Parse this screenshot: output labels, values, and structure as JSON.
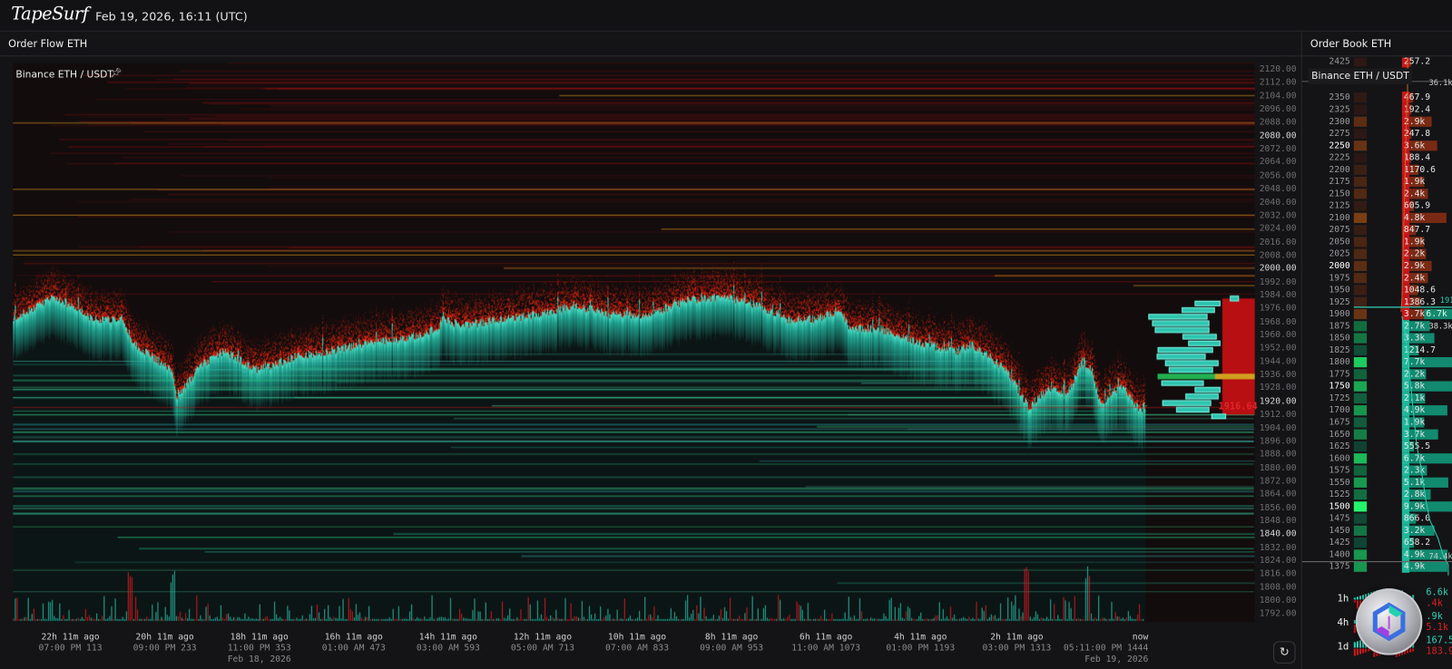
{
  "header": {
    "logo": "TapeSurf",
    "datetime": "Feb 19, 2026, 16:11 (UTC)"
  },
  "order_flow": {
    "panel_title": "Order Flow ETH",
    "instrument": "Binance ETH / USDT",
    "pin_icon": "pin-icon",
    "price_axis": {
      "max": 2120,
      "min": 1792,
      "step": 8,
      "bold": [
        2080,
        2000,
        1920,
        1840
      ]
    },
    "last_price": "1916.64",
    "colors": {
      "bid": "#2fd0b4",
      "ask": "#d01818",
      "level_line": "#d08a1a"
    },
    "price_trace": {
      "hours_ago": [
        23.4,
        22.5,
        21.7,
        21.1,
        20.9,
        20.1,
        20.0,
        19.5,
        19.0,
        18.3,
        17.5,
        16.7,
        16.0,
        15.2,
        14.6,
        14.5,
        14.1,
        13.3,
        12.5,
        11.8,
        11.0,
        10.2,
        9.5,
        8.7,
        8.0,
        7.4,
        6.8,
        6.3,
        6.1,
        5.5,
        4.7,
        4.3,
        3.9,
        3.6,
        3.2,
        2.8,
        2.4,
        2.0,
        1.6,
        1.3,
        1.1,
        0.9,
        0.5,
        0.1,
        0
      ],
      "price": [
        1969.5,
        1983.4,
        1969.5,
        1969.5,
        1955.6,
        1938.8,
        1922.0,
        1941.6,
        1950.0,
        1938.8,
        1947.2,
        1951.0,
        1955.6,
        1958.4,
        1964.0,
        1969.5,
        1965.6,
        1969.5,
        1972.3,
        1977.9,
        1972.3,
        1972.3,
        1980.6,
        1983.4,
        1977.9,
        1969.5,
        1969.5,
        1975.1,
        1964.0,
        1964.0,
        1955.6,
        1952.8,
        1950.0,
        1954.4,
        1947.2,
        1936.0,
        1916.5,
        1927.7,
        1924.9,
        1944.4,
        1938.8,
        1916.5,
        1930.5,
        1913.8,
        1917.7
      ]
    },
    "time_axis": [
      {
        "ago": "22h 11m ago",
        "time": "07:00 PM 113",
        "date": ""
      },
      {
        "ago": "20h 11m ago",
        "time": "09:00 PM 233",
        "date": ""
      },
      {
        "ago": "18h 11m ago",
        "time": "11:00 PM 353",
        "date": "Feb 18, 2026"
      },
      {
        "ago": "16h 11m ago",
        "time": "01:00 AM 473",
        "date": ""
      },
      {
        "ago": "14h 11m ago",
        "time": "03:00 AM 593",
        "date": ""
      },
      {
        "ago": "12h 11m ago",
        "time": "05:00 AM 713",
        "date": ""
      },
      {
        "ago": "10h 11m ago",
        "time": "07:00 AM 833",
        "date": ""
      },
      {
        "ago": "8h 11m ago",
        "time": "09:00 AM 953",
        "date": ""
      },
      {
        "ago": "6h 11m ago",
        "time": "11:00 AM 1073",
        "date": ""
      },
      {
        "ago": "4h 11m ago",
        "time": "01:00 PM 1193",
        "date": ""
      },
      {
        "ago": "2h 11m ago",
        "time": "03:00 PM 1313",
        "date": ""
      },
      {
        "ago": "now",
        "time": "05:11:00 PM 1444",
        "date": "Feb 19, 2026"
      }
    ],
    "refresh_icon": "refresh-icon"
  },
  "order_book": {
    "panel_title": "Order Book ETH",
    "instrument": "Binance ETH / USDT",
    "rows": [
      {
        "price": "2425",
        "value": "257.2",
        "side": "ask"
      },
      {
        "price": "",
        "value": "",
        "side": "ask"
      },
      {
        "price": "",
        "value": "",
        "side": "ask"
      },
      {
        "price": "2350",
        "value": "467.9",
        "side": "ask"
      },
      {
        "price": "2325",
        "value": "192.4",
        "side": "ask"
      },
      {
        "price": "2300",
        "value": "2.9k",
        "side": "ask"
      },
      {
        "price": "2275",
        "value": "247.8",
        "side": "ask"
      },
      {
        "price": "2250",
        "value": "3.6k",
        "side": "ask",
        "bold": true
      },
      {
        "price": "2225",
        "value": "188.4",
        "side": "ask"
      },
      {
        "price": "2200",
        "value": "1170.6",
        "side": "ask"
      },
      {
        "price": "2175",
        "value": "1.9k",
        "side": "ask"
      },
      {
        "price": "2150",
        "value": "2.4k",
        "side": "ask"
      },
      {
        "price": "2125",
        "value": "605.9",
        "side": "ask"
      },
      {
        "price": "2100",
        "value": "4.8k",
        "side": "ask"
      },
      {
        "price": "2075",
        "value": "847.7",
        "side": "ask"
      },
      {
        "price": "2050",
        "value": "1.9k",
        "side": "ask"
      },
      {
        "price": "2025",
        "value": "2.2k",
        "side": "ask"
      },
      {
        "price": "2000",
        "value": "2.9k",
        "side": "ask",
        "bold": true
      },
      {
        "price": "1975",
        "value": "2.4k",
        "side": "ask"
      },
      {
        "price": "1950",
        "value": "1048.6",
        "side": "ask"
      },
      {
        "price": "1925",
        "value": "1386.3",
        "side": "ask"
      },
      {
        "price": "1900",
        "value": "3.7k",
        "side": "ask",
        "bid_value": "6.7k"
      },
      {
        "price": "1875",
        "value": "2.7k",
        "side": "bid"
      },
      {
        "price": "1850",
        "value": "3.3k",
        "side": "bid"
      },
      {
        "price": "1825",
        "value": "1214.7",
        "side": "bid"
      },
      {
        "price": "1800",
        "value": "7.7k",
        "side": "bid"
      },
      {
        "price": "1775",
        "value": "2.2k",
        "side": "bid"
      },
      {
        "price": "1750",
        "value": "5.8k",
        "side": "bid",
        "bold": true
      },
      {
        "price": "1725",
        "value": "2.1k",
        "side": "bid"
      },
      {
        "price": "1700",
        "value": "4.9k",
        "side": "bid"
      },
      {
        "price": "1675",
        "value": "1.9k",
        "side": "bid"
      },
      {
        "price": "1650",
        "value": "3.7k",
        "side": "bid"
      },
      {
        "price": "1625",
        "value": "555.5",
        "side": "bid"
      },
      {
        "price": "1600",
        "value": "6.7k",
        "side": "bid"
      },
      {
        "price": "1575",
        "value": "2.3k",
        "side": "bid"
      },
      {
        "price": "1550",
        "value": "5.1k",
        "side": "bid"
      },
      {
        "price": "1525",
        "value": "2.8k",
        "side": "bid"
      },
      {
        "price": "1500",
        "value": "9.9k",
        "side": "bid",
        "bold": true
      },
      {
        "price": "1475",
        "value": "866.0",
        "side": "bid"
      },
      {
        "price": "1450",
        "value": "3.2k",
        "side": "bid"
      },
      {
        "price": "1425",
        "value": "658.2",
        "side": "bid"
      },
      {
        "price": "1400",
        "value": "4.9k",
        "side": "bid"
      },
      {
        "price": "1375",
        "value": "4.9k",
        "side": "bid"
      }
    ],
    "cumulative": {
      "top": "36.1k",
      "mid_price": "1916",
      "mid": "38.3k",
      "bottom": "74.4k"
    },
    "stats": [
      {
        "label": "1h",
        "buy": "6.6k",
        "sell": ".4k"
      },
      {
        "label": "4h",
        "buy": ".9k",
        "sell": "5.1k"
      },
      {
        "label": "1d",
        "buy": "167.5",
        "sell": "183.9"
      }
    ]
  }
}
